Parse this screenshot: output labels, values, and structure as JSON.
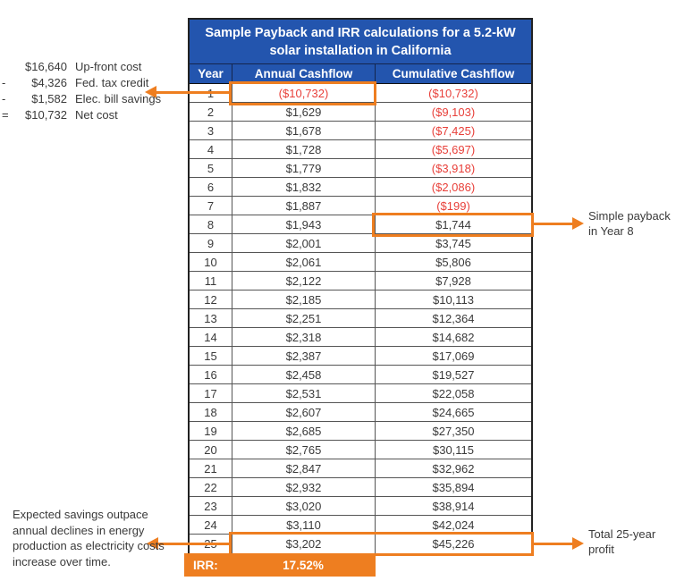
{
  "chart_data": {
    "type": "table",
    "title": "Sample Payback and IRR calculations for a 5.2-kW solar installation in California",
    "columns": [
      "Year",
      "Annual Cashflow",
      "Cumulative Cashflow"
    ],
    "rows": [
      [
        "1",
        "($10,732)",
        "($10,732)"
      ],
      [
        "2",
        "$1,629",
        "($9,103)"
      ],
      [
        "3",
        "$1,678",
        "($7,425)"
      ],
      [
        "4",
        "$1,728",
        "($5,697)"
      ],
      [
        "5",
        "$1,779",
        "($3,918)"
      ],
      [
        "6",
        "$1,832",
        "($2,086)"
      ],
      [
        "7",
        "$1,887",
        "($199)"
      ],
      [
        "8",
        "$1,943",
        "$1,744"
      ],
      [
        "9",
        "$2,001",
        "$3,745"
      ],
      [
        "10",
        "$2,061",
        "$5,806"
      ],
      [
        "11",
        "$2,122",
        "$7,928"
      ],
      [
        "12",
        "$2,185",
        "$10,113"
      ],
      [
        "13",
        "$2,251",
        "$12,364"
      ],
      [
        "14",
        "$2,318",
        "$14,682"
      ],
      [
        "15",
        "$2,387",
        "$17,069"
      ],
      [
        "16",
        "$2,458",
        "$19,527"
      ],
      [
        "17",
        "$2,531",
        "$22,058"
      ],
      [
        "18",
        "$2,607",
        "$24,665"
      ],
      [
        "19",
        "$2,685",
        "$27,350"
      ],
      [
        "20",
        "$2,765",
        "$30,115"
      ],
      [
        "21",
        "$2,847",
        "$32,962"
      ],
      [
        "22",
        "$2,932",
        "$35,894"
      ],
      [
        "23",
        "$3,020",
        "$38,914"
      ],
      [
        "24",
        "$3,110",
        "$42,024"
      ],
      [
        "25",
        "$3,202",
        "$45,226"
      ]
    ],
    "irr_label": "IRR:",
    "irr_value": "17.52%"
  },
  "annotations": {
    "cost_breakdown": {
      "items": [
        {
          "op": "",
          "amount": "$16,640",
          "label": "Up-front cost"
        },
        {
          "op": "-",
          "amount": "$4,326",
          "label": "Fed. tax credit"
        },
        {
          "op": "-",
          "amount": "$1,582",
          "label": "Elec. bill savings"
        },
        {
          "op": "=",
          "amount": "$10,732",
          "label": "Net cost"
        }
      ]
    },
    "simple_payback": "Simple payback in Year 8",
    "savings_note": "Expected savings outpace annual declines in energy production as electricity costs increase over time.",
    "total_profit": "Total 25-year profit"
  },
  "colors": {
    "header_blue": "#2355AE",
    "accent_orange": "#EE7E20",
    "negative_red": "#E8403A",
    "grid_gray": "#555555",
    "text_dark": "#3A3A3A"
  }
}
